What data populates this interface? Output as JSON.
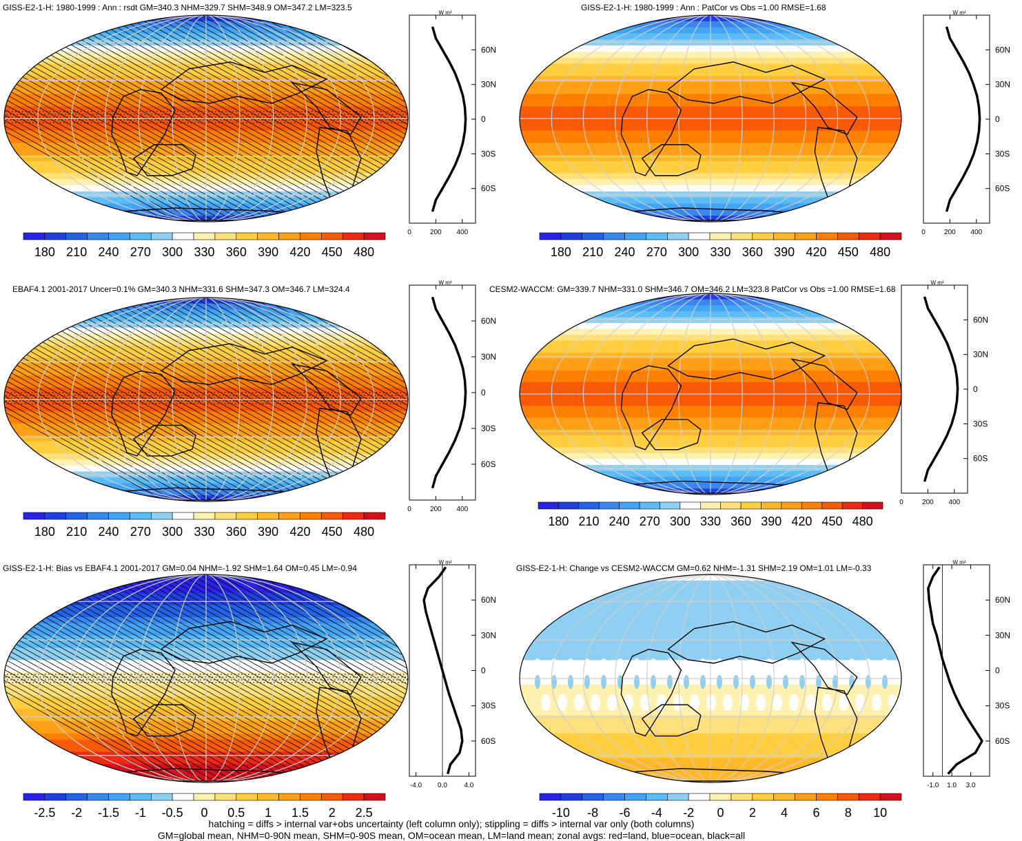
{
  "colors": {
    "abs": [
      "#2a22e8",
      "#1f3fe0",
      "#2563e6",
      "#3a86ef",
      "#43a3f5",
      "#5cbcf5",
      "#8fd0f2",
      "#ffffff",
      "#fff1b0",
      "#ffe07a",
      "#ffcf40",
      "#ffb827",
      "#ff9f15",
      "#ff7f00",
      "#f95a08",
      "#ee2a14",
      "#d70f1c"
    ],
    "bias": [
      "#2a22e8",
      "#1f3fe0",
      "#2563e6",
      "#3a86ef",
      "#43a3f5",
      "#5cbcf5",
      "#8fd0f2",
      "#ffffff",
      "#fff1b0",
      "#ffe07a",
      "#ffcf40",
      "#ffb827",
      "#ff9f15",
      "#ff7f00",
      "#f95a08",
      "#ee2a14",
      "#d70f1c"
    ]
  },
  "panels": [
    {
      "id": "p1",
      "title": "GISS-E2-1-H: 1980-1999 : Ann : rsdt GM=340.3 NHM=329.7 SHM=348.9 OM=347.2 LM=323.5",
      "kind": "abs",
      "hatch": true,
      "colorbar_labels": [
        "180",
        "210",
        "240",
        "270",
        "300",
        "330",
        "360",
        "390",
        "420",
        "450",
        "480"
      ],
      "zonal": {
        "units": "W m²",
        "xticks": [
          "0",
          "200",
          "400"
        ],
        "xvals": [
          0,
          200,
          400
        ],
        "xlim": [
          0,
          500
        ],
        "ylabels": [
          "60N",
          "30N",
          "0",
          "30S",
          "60S"
        ],
        "lat": [
          80,
          70,
          60,
          50,
          40,
          30,
          20,
          10,
          0,
          -10,
          -20,
          -30,
          -40,
          -50,
          -60,
          -70,
          -80
        ],
        "val": [
          175,
          200,
          250,
          300,
          345,
          378,
          405,
          420,
          425,
          420,
          405,
          380,
          345,
          300,
          250,
          200,
          175
        ]
      }
    },
    {
      "id": "p2",
      "title": "GISS-E2-1-H: 1980-1999 : Ann : PatCor vs Obs =1.00 RMSE=1.68",
      "kind": "abs",
      "hatch": false,
      "colorbar_labels": [
        "180",
        "210",
        "240",
        "270",
        "300",
        "330",
        "360",
        "390",
        "420",
        "450",
        "480"
      ],
      "zonal": {
        "units": "W m²",
        "xticks": [
          "0",
          "200",
          "400"
        ],
        "xvals": [
          0,
          200,
          400
        ],
        "xlim": [
          0,
          500
        ],
        "ylabels": [
          "60N",
          "30N",
          "0",
          "30S",
          "60S"
        ],
        "lat": [
          80,
          70,
          60,
          50,
          40,
          30,
          20,
          10,
          0,
          -10,
          -20,
          -30,
          -40,
          -50,
          -60,
          -70,
          -80
        ],
        "val": [
          175,
          200,
          250,
          300,
          345,
          378,
          405,
          420,
          425,
          420,
          405,
          380,
          345,
          300,
          250,
          200,
          175
        ]
      }
    },
    {
      "id": "p3",
      "title": "EBAF4.1 2001-2017 Uncer=0.1% GM=340.3 NHM=331.6 SHM=347.3 OM=346.7 LM=324.4",
      "kind": "abs",
      "hatch": true,
      "colorbar_labels": [
        "180",
        "210",
        "240",
        "270",
        "300",
        "330",
        "360",
        "390",
        "420",
        "450",
        "480"
      ],
      "zonal": {
        "units": "W m²",
        "xticks": [
          "0",
          "200",
          "400"
        ],
        "xvals": [
          0,
          200,
          400
        ],
        "xlim": [
          0,
          500
        ],
        "ylabels": [
          "60N",
          "30N",
          "0",
          "30S",
          "60S"
        ],
        "lat": [
          80,
          70,
          60,
          50,
          40,
          30,
          20,
          10,
          0,
          -10,
          -20,
          -30,
          -40,
          -50,
          -60,
          -70,
          -80
        ],
        "val": [
          175,
          200,
          250,
          300,
          345,
          378,
          405,
          420,
          425,
          420,
          405,
          380,
          345,
          300,
          250,
          200,
          175
        ]
      }
    },
    {
      "id": "p4",
      "title": "CESM2-WACCM: GM=339.7 NHM=331.0 SHM=346.7 OM=346.2 LM=323.8 PatCor vs Obs =1.00 RMSE=1.68",
      "kind": "abs",
      "hatch": false,
      "colorbar_labels": [
        "180",
        "210",
        "240",
        "270",
        "300",
        "330",
        "360",
        "390",
        "420",
        "450",
        "480"
      ],
      "zonal": {
        "units": "W m²",
        "xticks": [
          "0",
          "200",
          "400"
        ],
        "xvals": [
          0,
          200,
          400
        ],
        "xlim": [
          0,
          500
        ],
        "ylabels": [
          "60N",
          "30N",
          "0",
          "30S",
          "60S"
        ],
        "lat": [
          80,
          70,
          60,
          50,
          40,
          30,
          20,
          10,
          0,
          -10,
          -20,
          -30,
          -40,
          -50,
          -60,
          -70,
          -80
        ],
        "val": [
          175,
          200,
          250,
          300,
          345,
          378,
          405,
          420,
          425,
          420,
          405,
          380,
          345,
          300,
          250,
          200,
          175
        ]
      }
    },
    {
      "id": "p5",
      "title": "GISS-E2-1-H: Bias vs EBAF4.1 2001-2017 GM=0.04 NHM=-1.92 SHM=1.64 OM=0.45 LM=-0.94",
      "kind": "bias",
      "hatch": true,
      "colorbar_labels": [
        "-2.5",
        "-2",
        "-1.5",
        "-1",
        "-0.5",
        "0",
        "0.5",
        "1",
        "1.5",
        "2",
        "2.5"
      ],
      "zonal": {
        "units": "W m²",
        "xticks": [
          "-4.0",
          "0.0",
          "4.0"
        ],
        "xvals": [
          -4,
          0,
          4
        ],
        "xlim": [
          -5,
          5
        ],
        "ylabels": [
          "60N",
          "30N",
          "0",
          "30S",
          "60S"
        ],
        "lat": [
          88,
          80,
          70,
          60,
          50,
          40,
          30,
          20,
          10,
          0,
          -10,
          -20,
          -30,
          -40,
          -50,
          -60,
          -70,
          -80,
          -88
        ],
        "val": [
          0.5,
          -0.5,
          -2.2,
          -2.8,
          -2.5,
          -2.0,
          -1.5,
          -1.0,
          -0.5,
          0.0,
          0.5,
          1.0,
          1.6,
          2.2,
          2.8,
          3.0,
          2.6,
          1.2,
          0.8
        ]
      }
    },
    {
      "id": "p6",
      "title": "GISS-E2-1-H: Change vs CESM2-WACCM GM=0.62 NHM=-1.31 SHM=2.19 OM=1.01 LM=-0.33",
      "kind": "change",
      "hatch": false,
      "colorbar_labels": [
        "-10",
        "-8",
        "-6",
        "-4",
        "-2",
        "0",
        "2",
        "4",
        "6",
        "8",
        "10"
      ],
      "zonal": {
        "units": "W m²",
        "xticks": [
          "-1.0",
          "1.0",
          "3.0"
        ],
        "xvals": [
          -1,
          1,
          3
        ],
        "xlim": [
          -2,
          5
        ],
        "ylabels": [
          "60N",
          "30N",
          "0",
          "30S",
          "60S"
        ],
        "lat": [
          88,
          80,
          70,
          60,
          50,
          40,
          30,
          20,
          10,
          0,
          -10,
          -20,
          -30,
          -40,
          -50,
          -60,
          -70,
          -80,
          -88
        ],
        "val": [
          -0.3,
          -1.0,
          -1.5,
          -1.4,
          -1.2,
          -1.0,
          -0.6,
          -0.3,
          0.0,
          0.4,
          0.8,
          1.3,
          1.9,
          2.6,
          3.4,
          4.2,
          3.5,
          1.5,
          0.6
        ]
      }
    }
  ],
  "footer": {
    "line1": "hatching = diffs > internal var+obs uncertainty (left column only); stippling = diffs > internal var only (both columns)",
    "line2": "GM=global mean, NHM=0-90N mean, SHM=0-90S mean, OM=ocean mean, LM=land mean; zonal avgs: red=land, blue=ocean, black=all"
  }
}
